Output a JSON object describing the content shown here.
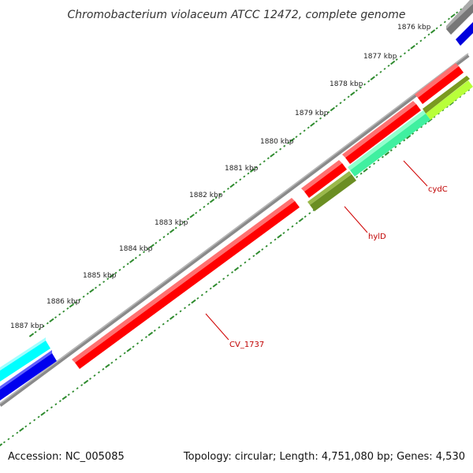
{
  "title": "Chromobacterium violaceum ATCC 12472, complete genome",
  "footer": {
    "accession": "Accession: NC_005085",
    "summary": "Topology: circular; Length: 4,751,080 bp; Genes: 4,530"
  },
  "map": {
    "topology": "circular",
    "view_range_kbp": [
      1876,
      1887
    ],
    "tick_labels": [
      "1876 kbp",
      "1877 kbp",
      "1878 kbp",
      "1879 kbp",
      "1880 kbp",
      "1881 kbp",
      "1882 kbp",
      "1883 kbp",
      "1884 kbp",
      "1885 kbp",
      "1886 kbp",
      "1887 kbp"
    ],
    "colors": {
      "backbone": "#808080",
      "ticks": "#2e8b2e",
      "gene_label": "#c00000",
      "gene_red": "#ff0000",
      "gene_dark_olive": "#6b8e23",
      "gene_light_olive": "#adff2f",
      "gene_seafoam": "#3cf5a0",
      "gene_cyan": "#00ffff",
      "gene_blue": "#0000ff",
      "gene_gray": "#707070"
    },
    "gene_labels": [
      "cydC",
      "hylD",
      "CV_1737"
    ]
  }
}
